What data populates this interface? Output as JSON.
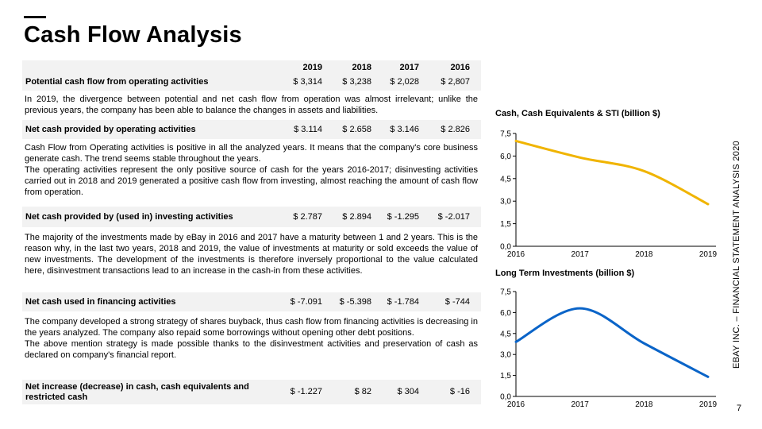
{
  "title": "Cash Flow Analysis",
  "years": [
    "2019",
    "2018",
    "2017",
    "2016"
  ],
  "rows": {
    "potential": {
      "label": "Potential cash flow from operating activities",
      "values": [
        "$ 3,314",
        "$ 3,238",
        "$ 2,028",
        "$ 2,807"
      ]
    },
    "operating": {
      "label": "Net cash provided by operating activities",
      "values": [
        "$ 3.114",
        "$ 2.658",
        "$ 3.146",
        "$ 2.826"
      ]
    },
    "investing": {
      "label": "Net cash provided by (used in) investing activities",
      "values": [
        "$ 2.787",
        "$ 2.894",
        "$ -1.295",
        "$ -2.017"
      ]
    },
    "financing": {
      "label": "Net cash used in financing activities",
      "values": [
        "$ -7.091",
        "$ -5.398",
        "$ -1.784",
        "$ -744"
      ]
    },
    "net_increase": {
      "label_line1": "Net increase (decrease) in cash, cash equivalents and",
      "label_line2": "restricted cash",
      "values": [
        "$ -1.227",
        "$ 82",
        "$ 304",
        "$ -16"
      ]
    }
  },
  "descriptions": {
    "potential": "In 2019, the divergence between potential and net cash flow from operation was almost irrelevant; unlike the previous years, the company has been able to balance the changes in assets and liabilities.",
    "operating_p1": "Cash Flow from Operating activities is positive in all the analyzed years. It means that the company's core business generate cash. The trend seems stable throughout the years.",
    "operating_p2": "The operating activities represent the only positive source of cash for the years 2016-2017; disinvesting activities carried out in 2018 and 2019 generated a positive cash flow from investing, almost reaching the amount of cash flow from operation.",
    "investing": "The majority of the investments made by eBay in 2016 and 2017 have a maturity between 1 and 2 years. This is the reason why, in the last two years, 2018 and 2019, the value of investments at maturity or sold exceeds the value of new investments. The development of the investments is therefore inversely proportional to the value calculated here, disinvestment transactions lead to an increase in the cash-in from these activities.",
    "financing_p1": "The company developed a strong strategy of shares buyback, thus cash flow from financing activities is decreasing in the years analyzed. The company also repaid some borrowings without opening other debt positions.",
    "financing_p2": "The above mention strategy is made possible thanks to the disinvestment activities and preservation of cash as declared on company's financial report."
  },
  "side_label": "EBAY INC. – FINANCIAL STATEMENT ANALYSIS 2020",
  "page_number": "7",
  "chart_data": [
    {
      "type": "line",
      "title": "Cash, Cash Equivalents & STI (billion $)",
      "x": [
        "2016",
        "2017",
        "2018",
        "2019"
      ],
      "y_ticks": [
        "0,0",
        "1,5",
        "3,0",
        "4,5",
        "6,0",
        "7,5"
      ],
      "ylim": [
        0,
        7.5
      ],
      "series": [
        {
          "values": [
            7.0,
            5.9,
            5.0,
            2.8
          ],
          "color": "#f0b400"
        }
      ],
      "grid": false
    },
    {
      "type": "line",
      "title": "Long Term Investments (billion $)",
      "x": [
        "2016",
        "2017",
        "2018",
        "2019"
      ],
      "y_ticks": [
        "0,0",
        "1,5",
        "3,0",
        "4,5",
        "6,0",
        "7,5"
      ],
      "ylim": [
        0,
        7.5
      ],
      "series": [
        {
          "values": [
            3.9,
            6.3,
            3.8,
            1.4
          ],
          "color": "#0a64c8"
        }
      ],
      "grid": false
    }
  ]
}
